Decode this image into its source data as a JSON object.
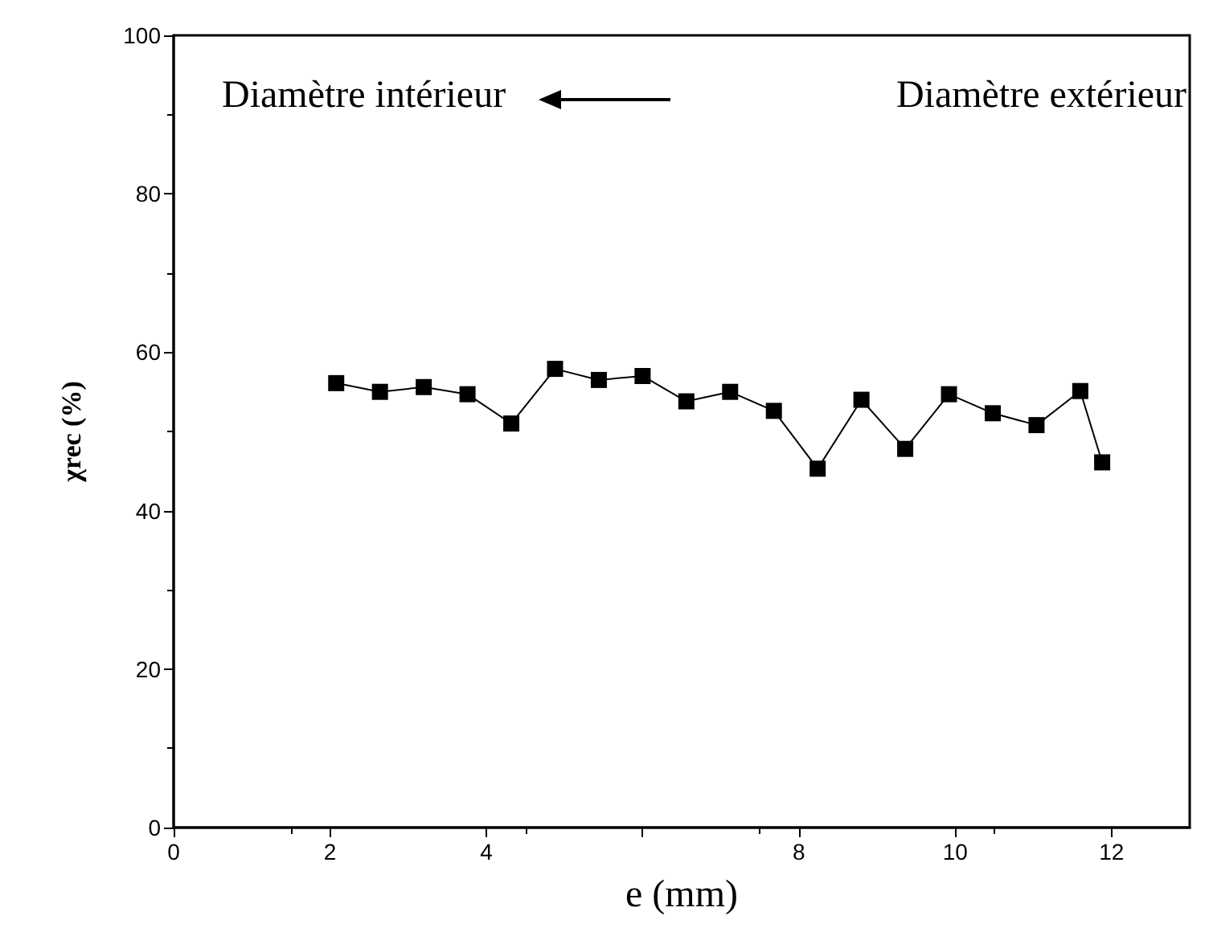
{
  "chart_data": {
    "type": "line",
    "xlabel": "e (mm)",
    "ylabel": "χrec (%)",
    "annotations": [
      "Diamètre intérieur",
      "Diamètre extérieur"
    ],
    "x": [
      2.08,
      2.64,
      3.2,
      3.76,
      4.32,
      4.88,
      5.44,
      6.0,
      6.56,
      7.12,
      7.68,
      8.24,
      8.8,
      9.36,
      9.92,
      10.48,
      11.04,
      11.6,
      11.88
    ],
    "series": [
      {
        "color": "#000000",
        "values": [
          56.1,
          55.0,
          55.6,
          54.7,
          51.0,
          57.9,
          56.5,
          57.0,
          53.8,
          55.0,
          52.6,
          45.3,
          54.0,
          47.8,
          54.7,
          52.3,
          50.8,
          55.1,
          46.1
        ]
      }
    ],
    "xlim": [
      0,
      13
    ],
    "xticks": [
      0,
      2,
      4,
      {
        "value": 6,
        "label": null
      },
      8,
      10,
      12
    ],
    "ylim": [
      0,
      100
    ],
    "yticks": [
      0,
      20,
      40,
      60,
      80,
      100
    ],
    "marker": "square",
    "line_style": "solid"
  }
}
